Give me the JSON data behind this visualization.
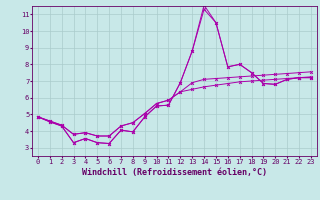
{
  "xlabel": "Windchill (Refroidissement éolien,°C)",
  "ylabel": "",
  "background_color": "#c8e8e8",
  "grid_color": "#aacccc",
  "line_color": "#aa00aa",
  "xlim": [
    -0.5,
    23.5
  ],
  "ylim": [
    2.5,
    11.5
  ],
  "xticks": [
    0,
    1,
    2,
    3,
    4,
    5,
    6,
    7,
    8,
    9,
    10,
    11,
    12,
    13,
    14,
    15,
    16,
    17,
    18,
    19,
    20,
    21,
    22,
    23
  ],
  "yticks": [
    3,
    4,
    5,
    6,
    7,
    8,
    9,
    10,
    11
  ],
  "series": [
    [
      4.85,
      4.55,
      4.3,
      3.3,
      3.55,
      3.3,
      3.25,
      4.05,
      3.95,
      4.85,
      5.5,
      5.55,
      6.9,
      8.8,
      11.3,
      10.5,
      7.85,
      8.0,
      7.5,
      6.85,
      6.8,
      7.1,
      7.2,
      7.2
    ],
    [
      4.85,
      4.55,
      4.3,
      3.3,
      3.55,
      3.3,
      3.25,
      4.05,
      3.95,
      4.85,
      5.5,
      5.55,
      6.9,
      8.8,
      11.55,
      10.5,
      7.85,
      8.0,
      7.5,
      6.85,
      6.8,
      7.1,
      7.2,
      7.2
    ],
    [
      4.85,
      4.6,
      4.35,
      3.8,
      3.9,
      3.7,
      3.7,
      4.3,
      4.5,
      5.05,
      5.65,
      5.85,
      6.35,
      6.9,
      7.1,
      7.15,
      7.2,
      7.25,
      7.3,
      7.35,
      7.4,
      7.45,
      7.5,
      7.55
    ],
    [
      4.85,
      4.6,
      4.35,
      3.8,
      3.9,
      3.7,
      3.7,
      4.3,
      4.5,
      5.05,
      5.65,
      5.85,
      6.35,
      6.5,
      6.65,
      6.75,
      6.85,
      6.95,
      7.0,
      7.05,
      7.1,
      7.15,
      7.2,
      7.25
    ]
  ],
  "font_color": "#660066",
  "tick_fontsize": 5.0,
  "label_fontsize": 6.0
}
